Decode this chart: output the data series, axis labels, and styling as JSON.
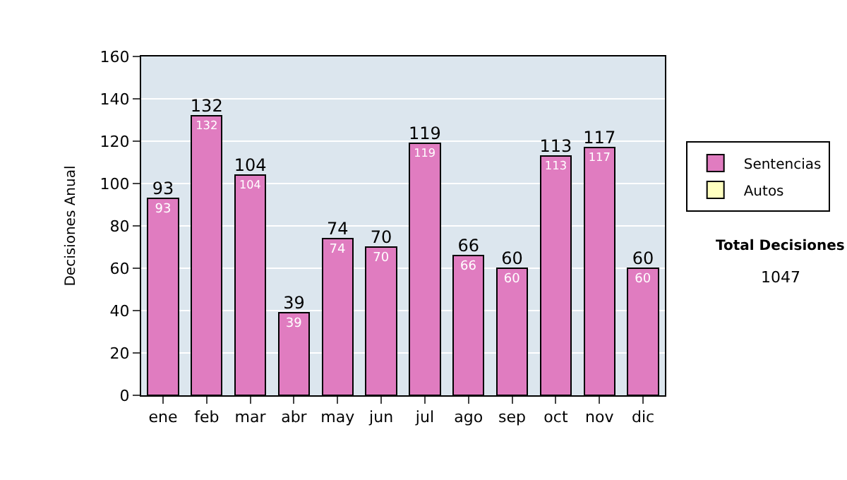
{
  "chart_data": {
    "type": "bar",
    "stacked": true,
    "ylabel": "Decisiones Anual",
    "categories": [
      "ene",
      "feb",
      "mar",
      "abr",
      "may",
      "jun",
      "jul",
      "ago",
      "sep",
      "oct",
      "nov",
      "dic"
    ],
    "series": [
      {
        "name": "Sentencias",
        "color": "#e07cc0",
        "values": [
          93,
          132,
          104,
          39,
          74,
          70,
          119,
          66,
          60,
          113,
          117,
          60
        ],
        "value_labels": [
          "93",
          "132",
          "104",
          "39",
          "74",
          "70",
          "119",
          "66",
          "60",
          "113",
          "117",
          "60"
        ]
      },
      {
        "name": "Autos",
        "color": "#ffffc0",
        "values": [
          null,
          null,
          null,
          null,
          null,
          null,
          null,
          null,
          null,
          null,
          null,
          null
        ]
      }
    ],
    "totals": [
      "93",
      "132",
      "104",
      "39",
      "74",
      "70",
      "119",
      "66",
      "60",
      "113",
      "117",
      "60"
    ],
    "ylim": [
      0,
      160
    ],
    "yticks": [
      0,
      20,
      40,
      60,
      80,
      100,
      120,
      140,
      160
    ],
    "grid": "y",
    "legend": "right",
    "annotations": [
      "Total Decisiones",
      "1047"
    ]
  }
}
